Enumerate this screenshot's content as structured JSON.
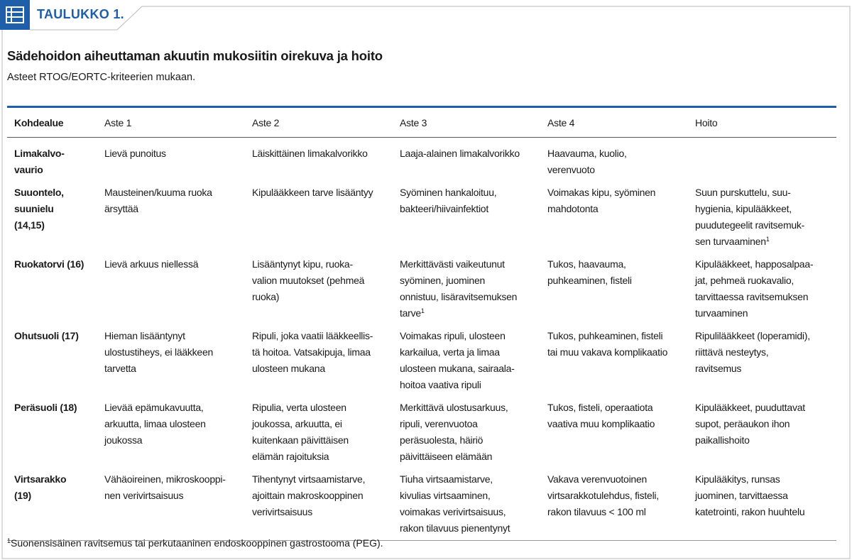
{
  "header": {
    "label": "TAULUKKO 1."
  },
  "title": "Sädehoidon aiheuttaman akuutin mukosiitin oirekuva ja hoito",
  "subtitle": "Asteet RTOG/EORTC-kriteerien mukaan.",
  "table": {
    "columns": [
      "Kohdealue",
      "Aste 1",
      "Aste 2",
      "Aste 3",
      "Aste 4",
      "Hoito"
    ],
    "rows": [
      {
        "cells": [
          {
            "lines": [
              "Limakalvo-",
              "vaurio"
            ]
          },
          {
            "lines": [
              "Lievä punoitus"
            ]
          },
          {
            "lines": [
              "Läiskittäinen limakalvorikko"
            ]
          },
          {
            "lines": [
              "Laaja-alainen limakalvorikko"
            ]
          },
          {
            "lines": [
              "Haavauma, kuolio,",
              "verenvuoto"
            ]
          },
          {
            "lines": []
          }
        ]
      },
      {
        "cells": [
          {
            "lines": [
              "Suuontelo,",
              "suunielu",
              "(14,15)"
            ]
          },
          {
            "lines": [
              "Mausteinen/kuuma ruoka",
              "ärsyttää"
            ]
          },
          {
            "lines": [
              "Kipulääkkeen tarve lisääntyy"
            ]
          },
          {
            "lines": [
              "Syöminen hankaloituu,",
              "bakteeri/hiivainfektiot"
            ]
          },
          {
            "lines": [
              "Voimakas kipu, syöminen",
              "mahdotonta"
            ]
          },
          {
            "lines": [
              "Suun purskuttelu, suu-",
              "hygienia, kipulääkkeet,",
              "puudutegeelit ravitsemuk-",
              "sen turvaaminen"
            ],
            "sup": "1"
          }
        ]
      },
      {
        "cells": [
          {
            "lines": [
              "Ruokatorvi (16)"
            ]
          },
          {
            "lines": [
              "Lievä arkuus niellessä"
            ]
          },
          {
            "lines": [
              "Lisääntynyt kipu, ruoka-",
              "valion muutokset (pehmeä",
              "ruoka)"
            ]
          },
          {
            "lines": [
              "Merkittävästi vaikeutunut",
              "syöminen, juominen",
              "onnistuu, lisäravitsemuksen",
              "tarve"
            ],
            "sup": "1"
          },
          {
            "lines": [
              "Tukos, haavauma,",
              "puhkeaminen, fisteli"
            ]
          },
          {
            "lines": [
              "Kipulääkkeet, happosalpaa-",
              "jat, pehmeä ruokavalio,",
              "tarvittaessa ravitsemuksen",
              "turvaaminen"
            ]
          }
        ]
      },
      {
        "cells": [
          {
            "lines": [
              "Ohutsuoli (17)"
            ]
          },
          {
            "lines": [
              "Hieman lisääntynyt",
              "ulostustiheys, ei lääkkeen",
              "tarvetta"
            ]
          },
          {
            "lines": [
              "Ripuli, joka vaatii lääkkeellis-",
              "tä hoitoa. Vatsakipuja, limaa",
              "ulosteen mukana"
            ]
          },
          {
            "lines": [
              "Voimakas ripuli, ulosteen",
              "karkailua, verta ja limaa",
              "ulosteen mukana, sairaala-",
              "hoitoa vaativa ripuli"
            ]
          },
          {
            "lines": [
              "Tukos, puhkeaminen, fisteli",
              "tai muu vakava komplikaatio"
            ]
          },
          {
            "lines": [
              "Ripulilääkkeet (loperamidi),",
              "riittävä nesteytys,",
              "ravitsemus"
            ]
          }
        ]
      },
      {
        "cells": [
          {
            "lines": [
              "Peräsuoli (18)"
            ]
          },
          {
            "lines": [
              "Lievää epämukavuutta,",
              "arkuutta, limaa ulosteen",
              "joukossa"
            ]
          },
          {
            "lines": [
              "Ripulia, verta ulosteen",
              "joukossa, arkuutta, ei",
              "kuitenkaan päivittäisen",
              "elämän rajoituksia"
            ]
          },
          {
            "lines": [
              "Merkittävä ulostusarkuus,",
              "ripuli, verenvuotoa",
              "peräsuolesta, häiriö",
              "päivittäiseen elämään"
            ]
          },
          {
            "lines": [
              "Tukos, fisteli, operaatiota",
              "vaativa muu komplikaatio"
            ]
          },
          {
            "lines": [
              "Kipulääkkeet, puuduttavat",
              "supot, peräaukon ihon",
              "paikallishoito"
            ]
          }
        ]
      },
      {
        "cells": [
          {
            "lines": [
              "Virtsarakko",
              "(19)"
            ]
          },
          {
            "lines": [
              "Vähäoireinen, mikroskooppi-",
              "nen verivirtsaisuus"
            ]
          },
          {
            "lines": [
              "Tihentynyt virtsaamistarve,",
              "ajoittain makroskooppinen",
              "verivirtsaisuus"
            ]
          },
          {
            "lines": [
              "Tiuha virtsaamistarve,",
              "kivulias virtsaaminen,",
              "voimakas verivirtsaisuus,",
              "rakon tilavuus pienentynyt"
            ]
          },
          {
            "lines": [
              "Vakava verenvuotoinen",
              "virtsarakkotulehdus, fisteli,",
              "rakon tilavuus < 100 ml"
            ]
          },
          {
            "lines": [
              "Kipulääkitys, runsas",
              "juominen, tarvittaessa",
              "katetrointi, rakon huuhtelu"
            ]
          }
        ]
      }
    ]
  },
  "footnote": {
    "marker": "1",
    "text": "Suonensisäinen ravitsemus tai perkutaaninen endoskooppinen gastrostooma (PEG)."
  }
}
